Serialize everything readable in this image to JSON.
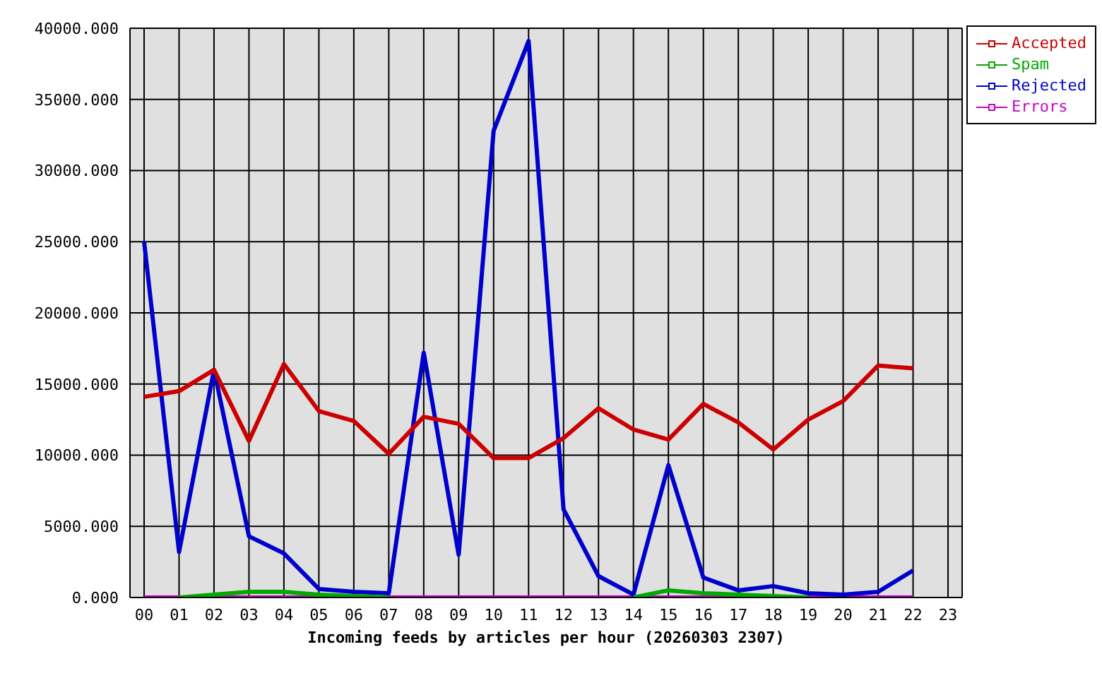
{
  "chart_data": {
    "type": "line",
    "xlabel": "Incoming feeds by articles per hour (20260303 2307)",
    "categories": [
      "00",
      "01",
      "02",
      "03",
      "04",
      "05",
      "06",
      "07",
      "08",
      "09",
      "10",
      "11",
      "12",
      "13",
      "14",
      "15",
      "16",
      "17",
      "18",
      "19",
      "20",
      "21",
      "22",
      "23"
    ],
    "series": [
      {
        "name": "Accepted",
        "color": "#cc0000",
        "values": [
          14100,
          14500,
          16000,
          11000,
          16400,
          13100,
          12400,
          10100,
          12700,
          12200,
          9800,
          9800,
          11200,
          13300,
          11800,
          11100,
          13600,
          12300,
          10400,
          12500,
          13800,
          16300,
          16100,
          null
        ]
      },
      {
        "name": "Spam",
        "color": "#00aa00",
        "values": [
          null,
          0,
          200,
          400,
          400,
          200,
          100,
          0,
          null,
          null,
          null,
          null,
          null,
          null,
          0,
          500,
          300,
          200,
          100,
          0,
          null,
          null,
          null,
          null
        ]
      },
      {
        "name": "Rejected",
        "color": "#0000cc",
        "values": [
          25000,
          3200,
          16000,
          4300,
          3100,
          600,
          400,
          300,
          17200,
          3000,
          32800,
          39100,
          6200,
          1500,
          200,
          9300,
          1400,
          500,
          800,
          300,
          200,
          400,
          1900,
          null
        ]
      },
      {
        "name": "Errors",
        "color": "#cc00cc",
        "values": [
          0,
          0,
          0,
          0,
          0,
          0,
          0,
          0,
          0,
          0,
          0,
          0,
          0,
          0,
          0,
          0,
          0,
          0,
          0,
          0,
          0,
          0,
          0,
          null
        ]
      }
    ],
    "ylim": [
      0,
      40000
    ],
    "yticks": [
      {
        "value": 0,
        "label": "0.000"
      },
      {
        "value": 5000,
        "label": "5000.000"
      },
      {
        "value": 10000,
        "label": "10000.000"
      },
      {
        "value": 15000,
        "label": "15000.000"
      },
      {
        "value": 20000,
        "label": "20000.000"
      },
      {
        "value": 25000,
        "label": "25000.000"
      },
      {
        "value": 30000,
        "label": "30000.000"
      },
      {
        "value": 35000,
        "label": "35000.000"
      },
      {
        "value": 40000,
        "label": "40000.000"
      }
    ],
    "grid": true,
    "legend": "top right",
    "marker": "none",
    "line_style": "solid"
  }
}
